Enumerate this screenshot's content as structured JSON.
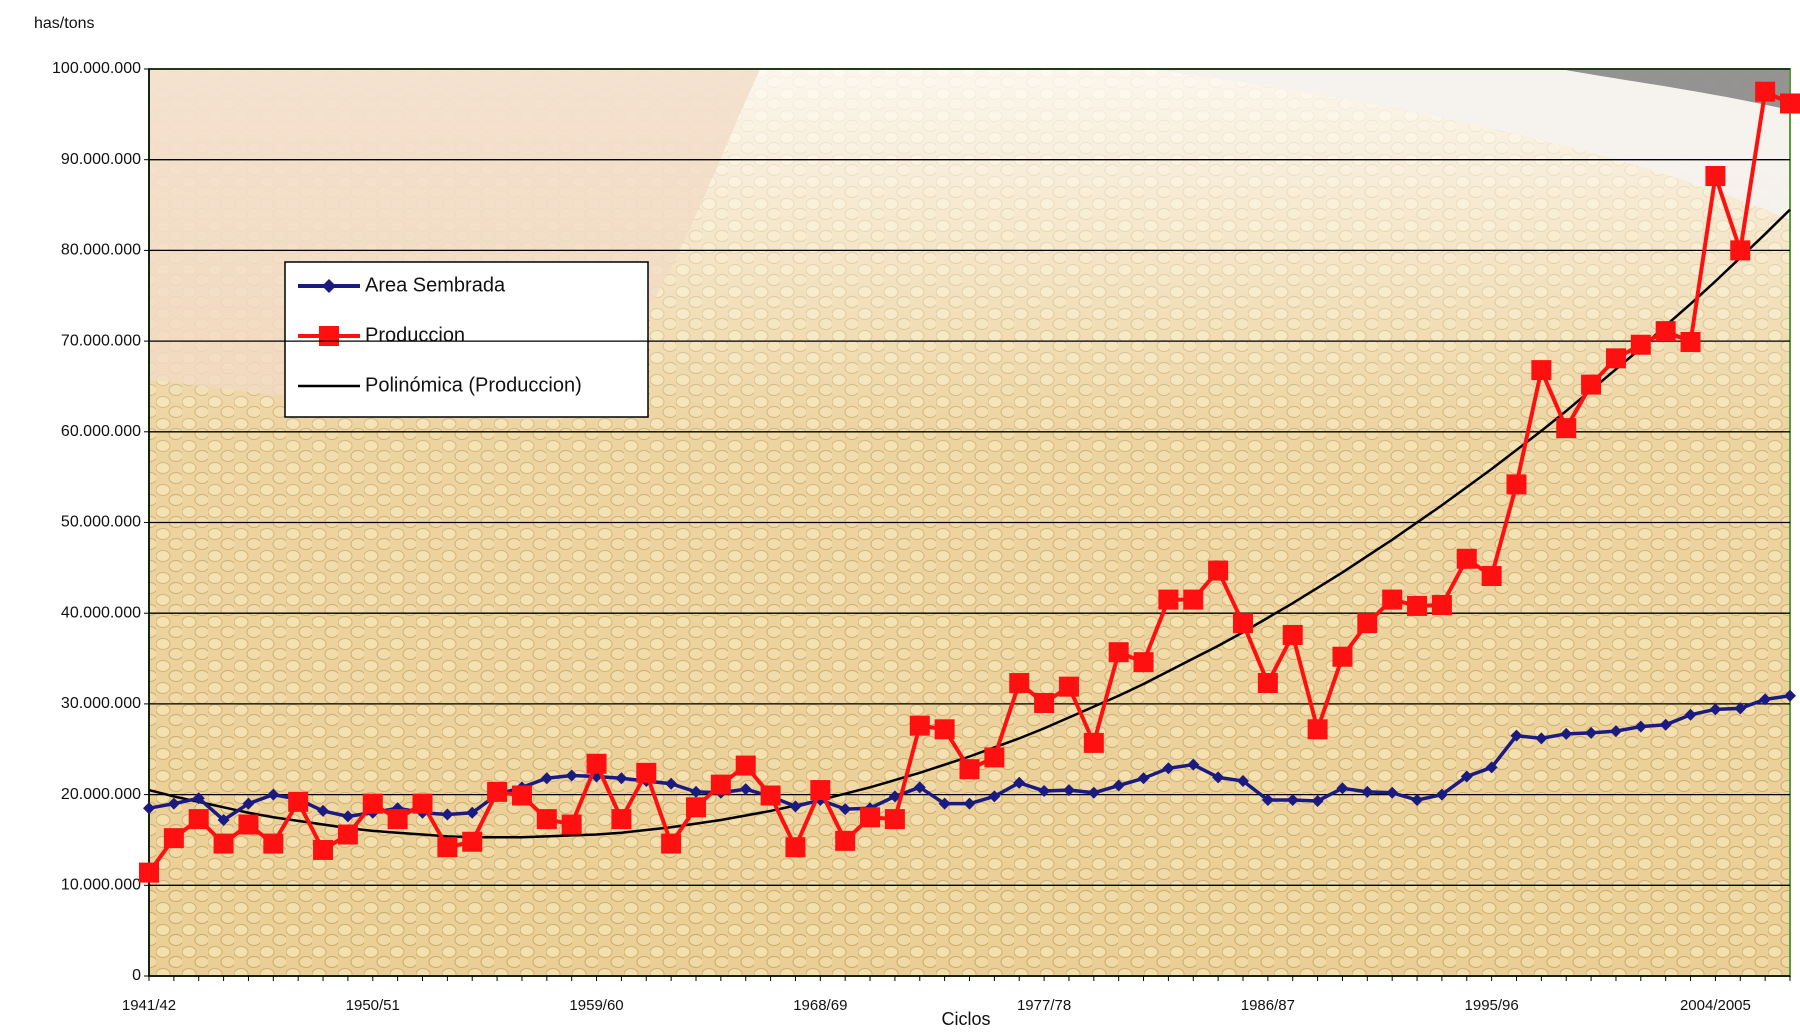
{
  "chart_data": {
    "type": "line",
    "y_unit_label": "has/tons",
    "x_label": "Ciclos",
    "categories": [
      "1941/42",
      null,
      null,
      null,
      null,
      null,
      null,
      null,
      null,
      "1950/51",
      null,
      null,
      null,
      null,
      null,
      null,
      null,
      null,
      "1959/60",
      null,
      null,
      null,
      null,
      null,
      null,
      null,
      null,
      "1968/69",
      null,
      null,
      null,
      null,
      null,
      null,
      null,
      null,
      "1977/78",
      null,
      null,
      null,
      null,
      null,
      null,
      null,
      null,
      "1986/87",
      null,
      null,
      null,
      null,
      null,
      null,
      null,
      null,
      "1995/96",
      null,
      null,
      null,
      null,
      null,
      null,
      null,
      null,
      "2004/2005",
      null,
      null,
      null
    ],
    "ylim": [
      0,
      100000000
    ],
    "yticks": [
      0,
      {
        "value": 10000000,
        "label": "10.000.000"
      },
      {
        "value": 20000000,
        "label": "20.000.000"
      },
      {
        "value": 30000000,
        "label": "30.000.000"
      },
      {
        "value": 40000000,
        "label": "40.000.000"
      },
      {
        "value": 50000000,
        "label": "50.000.000"
      },
      {
        "value": 60000000,
        "label": "60.000.000"
      },
      {
        "value": 70000000,
        "label": "70.000.000"
      },
      {
        "value": 80000000,
        "label": "80.000.000"
      },
      {
        "value": 90000000,
        "label": "90.000.000"
      },
      {
        "value": 100000000,
        "label": "100.000.000"
      }
    ],
    "grid": true,
    "series": [
      {
        "name": "Area Sembrada",
        "color": "#1a1a80",
        "marker": "diamond",
        "values": [
          18500000,
          19000000,
          19600000,
          17200000,
          19000000,
          20000000,
          19500000,
          18200000,
          17600000,
          18000000,
          18500000,
          18000000,
          17800000,
          18000000,
          20000000,
          20800000,
          21800000,
          22100000,
          22000000,
          21800000,
          21500000,
          21200000,
          20300000,
          20200000,
          20600000,
          19800000,
          18700000,
          19400000,
          18400000,
          18500000,
          19800000,
          20800000,
          19000000,
          19000000,
          19800000,
          21300000,
          20400000,
          20500000,
          20200000,
          21000000,
          21800000,
          22900000,
          23300000,
          21900000,
          21500000,
          19400000,
          19400000,
          19300000,
          20700000,
          20300000,
          20200000,
          19400000,
          20000000,
          22000000,
          23000000,
          26500000,
          26200000,
          26700000,
          26800000,
          27000000,
          27500000,
          27700000,
          28800000,
          29400000,
          29500000,
          30500000,
          30900000
        ]
      },
      {
        "name": "Produccion",
        "color": "#ff1010",
        "marker": "square",
        "values": [
          11400000,
          15200000,
          17300000,
          14600000,
          16700000,
          14600000,
          19200000,
          13900000,
          15600000,
          19000000,
          17300000,
          19000000,
          14200000,
          14800000,
          20300000,
          19900000,
          17300000,
          16700000,
          23400000,
          17300000,
          22400000,
          14600000,
          18600000,
          21100000,
          23200000,
          19900000,
          14200000,
          20500000,
          14900000,
          17500000,
          17300000,
          27600000,
          27200000,
          22800000,
          24100000,
          32300000,
          30100000,
          31900000,
          25700000,
          35700000,
          34600000,
          41500000,
          41500000,
          44700000,
          38900000,
          32300000,
          37600000,
          27200000,
          35200000,
          38900000,
          41500000,
          40800000,
          40900000,
          46000000,
          44100000,
          54200000,
          66800000,
          60400000,
          65200000,
          68100000,
          69600000,
          71100000,
          69900000,
          88200000,
          80000000,
          97500000,
          96200000
        ]
      },
      {
        "name": "Polinómica (Produccion)",
        "color": "#000000",
        "marker": "none",
        "values": [
          20500000,
          19800000,
          19200000,
          18600000,
          18000000,
          17500000,
          17100000,
          16700000,
          16300000,
          16000000,
          15800000,
          15600000,
          15400000,
          15300000,
          15300000,
          15300000,
          15400000,
          15500000,
          15600000,
          15800000,
          16100000,
          16400000,
          16800000,
          17200000,
          17700000,
          18200000,
          18800000,
          19400000,
          20100000,
          20800000,
          21600000,
          22400000,
          23300000,
          24200000,
          25200000,
          26200000,
          27300000,
          28500000,
          29700000,
          30900000,
          32200000,
          33600000,
          35000000,
          36400000,
          37900000,
          39500000,
          41100000,
          42800000,
          44500000,
          46300000,
          48100000,
          50000000,
          51900000,
          53900000,
          55900000,
          58000000,
          60100000,
          62300000,
          64600000,
          66900000,
          69200000,
          71700000,
          74100000,
          76600000,
          79200000,
          81800000,
          84500000
        ]
      }
    ]
  }
}
